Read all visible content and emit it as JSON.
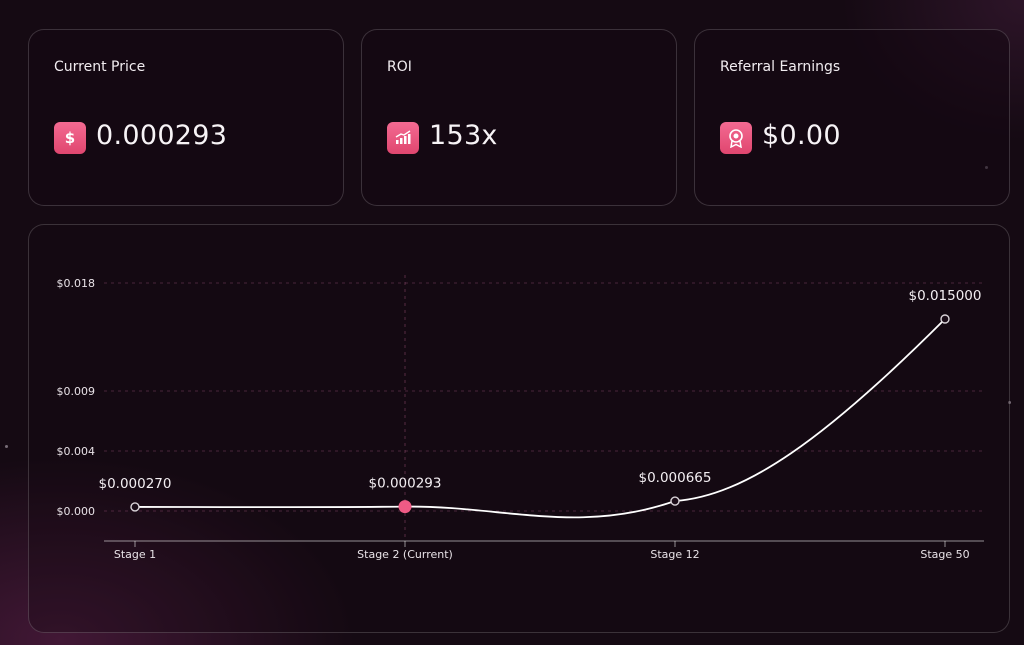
{
  "cards": {
    "price": {
      "label": "Current Price",
      "value": "0.000293",
      "icon": "dollar-icon"
    },
    "roi": {
      "label": "ROI",
      "value": "153x",
      "icon": "bar-chart-icon"
    },
    "referral": {
      "label": "Referral Earnings",
      "value": "$0.00",
      "icon": "badge-icon"
    }
  },
  "colors": {
    "accent": "#ef5b85",
    "line": "#ffffff",
    "background": "#150a13"
  },
  "chart_data": {
    "type": "line",
    "categories": [
      "Stage 1",
      "Stage 2 (Current)",
      "Stage 12",
      "Stage 50"
    ],
    "values": [
      0.00027,
      0.000293,
      0.000665,
      0.015
    ],
    "data_labels": [
      "$0.000270",
      "$0.000293",
      "$0.000665",
      "$0.015000"
    ],
    "current_index": 1,
    "y_ticks": [
      {
        "value": 0.018,
        "label": "$0.018"
      },
      {
        "value": 0.009,
        "label": "$0.009"
      },
      {
        "value": 0.004,
        "label": "$0.004"
      },
      {
        "value": 0.0,
        "label": "$0.000"
      }
    ],
    "grid": true
  }
}
